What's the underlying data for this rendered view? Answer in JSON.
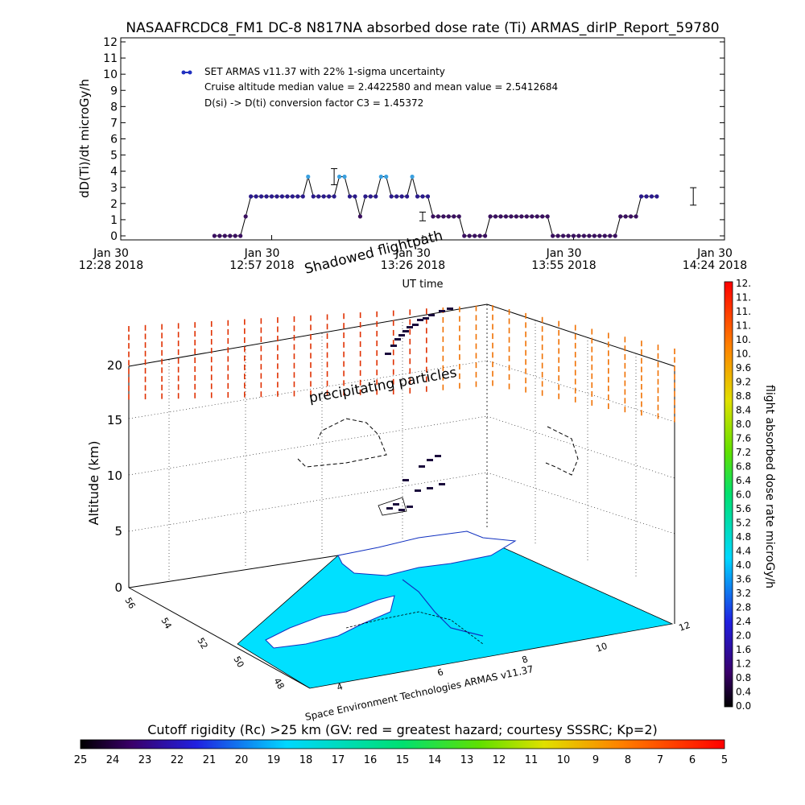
{
  "title": "NASAAFRCDC8_FM1 DC-8   N817NA absorbed dose rate (Ti) ARMAS_dirIP_Report_59780",
  "chart_data": [
    {
      "type": "line",
      "ylabel": "dD(Ti)/dt microGy/h",
      "xlabel": "UT time",
      "ylim": [
        0,
        12
      ],
      "yticks": [
        "0",
        "1",
        "2",
        "3",
        "4",
        "5",
        "6",
        "7",
        "8",
        "9",
        "10",
        "11",
        "12"
      ],
      "xticks": [
        {
          "line1": "Jan 30",
          "line2": "12:28 2018"
        },
        {
          "line1": "Jan 30",
          "line2": "12:57 2018"
        },
        {
          "line1": "Jan 30",
          "line2": "13:26 2018"
        },
        {
          "line1": "Jan 30",
          "line2": "13:55 2018"
        },
        {
          "line1": "Jan 30",
          "line2": "14:24 2018"
        }
      ],
      "xlim_minutes": [
        0,
        116
      ],
      "legend": "top-left",
      "annotations": [
        "SET ARMAS v11.37 with 22% 1-sigma uncertainty",
        "Cruise altitude median value = 2.4422580 and mean value = 2.5412684",
        "D(si) -> D(ti) conversion factor C3 = 1.45372"
      ],
      "series": [
        {
          "name": "SET ARMAS v11.37 with 22% 1-sigma uncertainty",
          "x": [
            18,
            19,
            20,
            21,
            22,
            23,
            24,
            25,
            26,
            27,
            28,
            29,
            30,
            31,
            32,
            33,
            34,
            35,
            36,
            37,
            38,
            39,
            40,
            41,
            42,
            43,
            44,
            45,
            46,
            47,
            48,
            49,
            50,
            51,
            52,
            53,
            54,
            55,
            56,
            57,
            58,
            59,
            60,
            61,
            62,
            63,
            64,
            65,
            66,
            67,
            68,
            69,
            70,
            71,
            72,
            73,
            74,
            75,
            76,
            77,
            78,
            79,
            80,
            81,
            82,
            83,
            84,
            85,
            86,
            87,
            88,
            89,
            90,
            91,
            92,
            93,
            94,
            95,
            96,
            97,
            98,
            99,
            100,
            101,
            102,
            103
          ],
          "y": [
            0,
            0,
            0,
            0,
            0,
            0,
            1.2,
            2.44,
            2.44,
            2.44,
            2.44,
            2.44,
            2.44,
            2.44,
            2.44,
            2.44,
            2.44,
            2.44,
            3.66,
            2.44,
            2.44,
            2.44,
            2.44,
            2.44,
            3.66,
            3.66,
            2.44,
            2.44,
            1.2,
            2.44,
            2.44,
            2.44,
            3.66,
            3.66,
            2.44,
            2.44,
            2.44,
            2.44,
            3.66,
            2.44,
            2.44,
            2.44,
            1.2,
            1.2,
            1.2,
            1.2,
            1.2,
            1.2,
            0,
            0,
            0,
            0,
            0,
            1.2,
            1.2,
            1.2,
            1.2,
            1.2,
            1.2,
            1.2,
            1.2,
            1.2,
            1.2,
            1.2,
            1.2,
            0,
            0,
            0,
            0,
            0,
            0,
            0,
            0,
            0,
            0,
            0,
            0,
            0,
            1.2,
            1.2,
            1.2,
            1.2,
            2.44,
            2.44,
            2.44,
            2.44
          ]
        }
      ],
      "error_bars": [
        {
          "x": 41,
          "y": 3.66,
          "err": 0.5
        },
        {
          "x": 58,
          "y": 1.2,
          "err": 0.27
        },
        {
          "x": 110,
          "y": 2.44,
          "err": 0.54
        }
      ]
    },
    {
      "type": "scatter",
      "view": "3d",
      "zlabel": "Altitude (km)",
      "zticks": [
        "0",
        "5",
        "10",
        "15",
        "20"
      ],
      "x_ticks": [
        "4",
        "6",
        "8",
        "10",
        "12"
      ],
      "y_ticks": [
        "48",
        "50",
        "52",
        "54",
        "56"
      ],
      "annotations": [
        "Shadowed flightpath",
        "precipitating particles",
        "Space Environment Technologies ARMAS v11.37"
      ],
      "colorbar": {
        "label": "flight absorbed dose rate microGy/h",
        "ticks": [
          "0.0",
          "0.4",
          "0.8",
          "1.2",
          "1.6",
          "2.0",
          "2.4",
          "2.8",
          "3.2",
          "3.6",
          "4.0",
          "4.4",
          "4.8",
          "5.2",
          "5.6",
          "6.0",
          "6.4",
          "6.8",
          "7.2",
          "7.6",
          "8.0",
          "8.4",
          "8.8",
          "9.2",
          "9.6",
          "10.",
          "10.",
          "11.",
          "11.",
          "11.",
          "12."
        ]
      }
    },
    {
      "type": "heatmap",
      "title": "Cutoff rigidity (Rc) >25 km (GV: red = greatest hazard; courtesy SSSRC; Kp=2)",
      "colorbar_ticks": [
        "25",
        "24",
        "23",
        "22",
        "21",
        "20",
        "19",
        "18",
        "17",
        "16",
        "15",
        "14",
        "13",
        "12",
        "11",
        "10",
        "9",
        "8",
        "7",
        "6",
        "5"
      ]
    }
  ],
  "colors": {
    "line": "#000000",
    "marker": "#2a1a8c",
    "marker_high": "#3aa0e0",
    "ocean": "#00e0ff",
    "precip_high": "#e03000",
    "precip_low": "#f07000"
  }
}
